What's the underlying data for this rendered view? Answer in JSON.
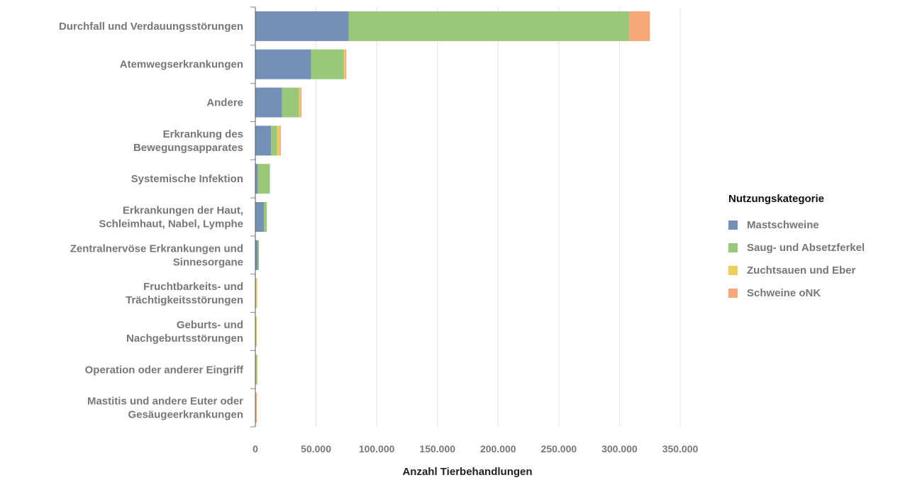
{
  "chart_data": {
    "type": "bar",
    "orientation": "horizontal",
    "stacked": true,
    "categories": [
      [
        "Durchfall und Verdauungsstörungen"
      ],
      [
        "Atemwegserkrankungen"
      ],
      [
        "Andere"
      ],
      [
        "Erkrankung des",
        "Bewegungsapparates"
      ],
      [
        "Systemische Infektion"
      ],
      [
        "Erkrankungen der Haut,",
        "Schleimhaut, Nabel, Lymphe"
      ],
      [
        "Zentralnervöse Erkrankungen und",
        "Sinnesorgane"
      ],
      [
        "Fruchtbarkeits- und",
        "Trächtigkeitsstörungen"
      ],
      [
        "Geburts- und",
        "Nachgeburtsstörungen"
      ],
      [
        "Operation oder anderer Eingriff"
      ],
      [
        "Mastitis und andere Euter oder",
        "Gesäugeerkrankungen"
      ]
    ],
    "series": [
      {
        "name": "Mastschweine",
        "color": "#7490b8",
        "values": [
          77000,
          46000,
          22000,
          13000,
          2000,
          7000,
          2000,
          200,
          200,
          300,
          200
        ]
      },
      {
        "name": "Saug- und Absetzferkel",
        "color": "#9ac87a",
        "values": [
          231000,
          27000,
          14000,
          5000,
          10000,
          2500,
          1000,
          300,
          300,
          1000,
          200
        ]
      },
      {
        "name": "Zuchtsauen und Eber",
        "color": "#f0cc5a",
        "values": [
          100,
          1000,
          1000,
          2000,
          0,
          0,
          0,
          1000,
          800,
          100,
          100
        ]
      },
      {
        "name": "Schweine oNK",
        "color": "#f7a878",
        "values": [
          17000,
          1000,
          1000,
          1000,
          0,
          0,
          0,
          0,
          0,
          0,
          800
        ]
      }
    ],
    "xlabel": "Anzahl Tierbehandlungen",
    "ylabel": "",
    "xlim": [
      0,
      350000
    ],
    "xticks": [
      0,
      50000,
      100000,
      150000,
      200000,
      250000,
      300000,
      350000
    ],
    "xtick_labels": [
      "0",
      "50.000",
      "100.000",
      "150.000",
      "200.000",
      "250.000",
      "300.000",
      "350.000"
    ],
    "grid": "vertical",
    "legend_title": "Nutzungskategorie",
    "legend_position": "right"
  }
}
